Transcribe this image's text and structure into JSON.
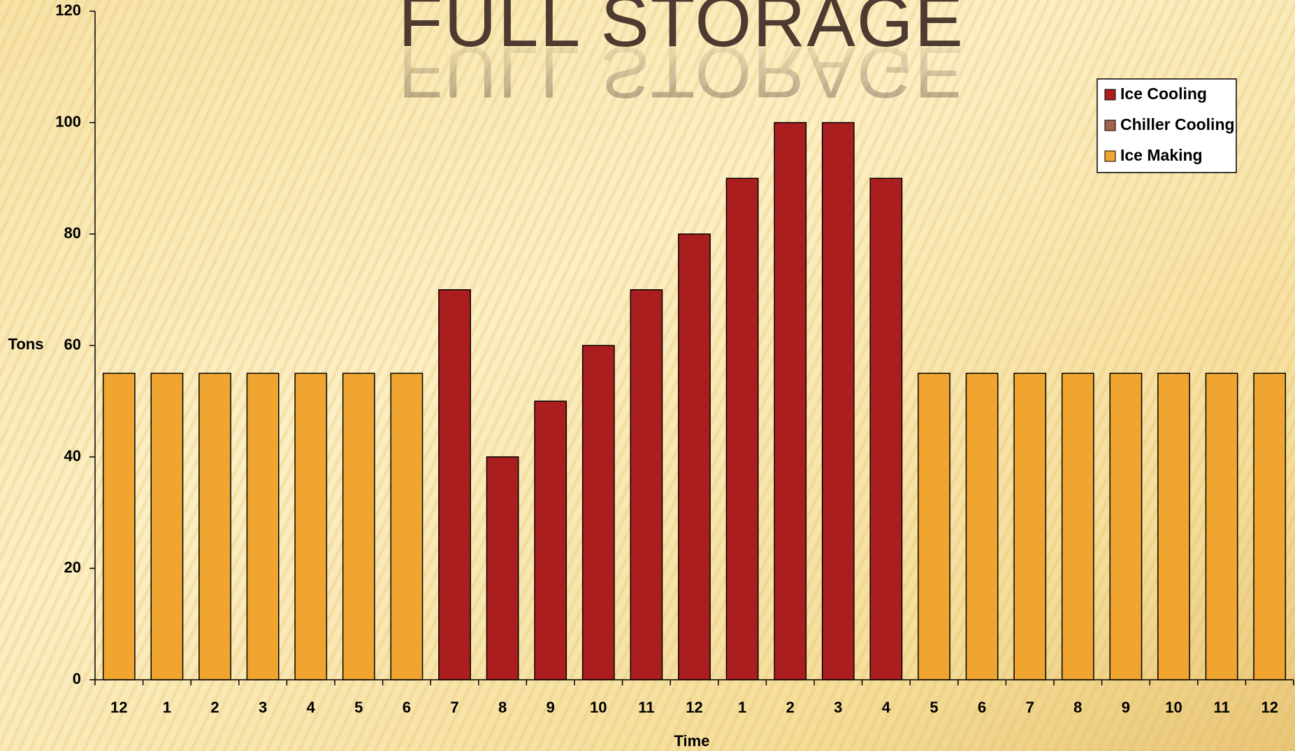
{
  "chart_data": {
    "type": "bar",
    "stacked": true,
    "title": "FULL STORAGE",
    "x_label": "Time",
    "y_label": "Tons",
    "categories": [
      "12",
      "1",
      "2",
      "3",
      "4",
      "5",
      "6",
      "7",
      "8",
      "9",
      "10",
      "11",
      "12",
      "1",
      "2",
      "3",
      "4",
      "5",
      "6",
      "7",
      "8",
      "9",
      "10",
      "11",
      "12"
    ],
    "series": [
      {
        "name": "Ice Cooling",
        "color": "#aa1e20",
        "values": [
          null,
          null,
          null,
          null,
          null,
          null,
          null,
          70,
          40,
          50,
          60,
          70,
          80,
          90,
          100,
          100,
          90,
          null,
          null,
          null,
          null,
          null,
          null,
          null,
          null
        ]
      },
      {
        "name": "Chiller Cooling",
        "color": "#a5644e",
        "values": [
          null,
          null,
          null,
          null,
          null,
          null,
          null,
          null,
          null,
          null,
          null,
          null,
          null,
          null,
          null,
          null,
          null,
          null,
          null,
          null,
          null,
          null,
          null,
          null,
          null
        ]
      },
      {
        "name": "Ice Making",
        "color": "#efa530",
        "values": [
          55,
          55,
          55,
          55,
          55,
          55,
          55,
          null,
          null,
          null,
          null,
          null,
          null,
          null,
          null,
          null,
          null,
          55,
          55,
          55,
          55,
          55,
          55,
          55,
          55
        ]
      }
    ],
    "ylim": [
      0,
      120
    ],
    "yticks": [
      0,
      20,
      40,
      60,
      80,
      100,
      120
    ],
    "legend": "upper right",
    "grid": false
  }
}
